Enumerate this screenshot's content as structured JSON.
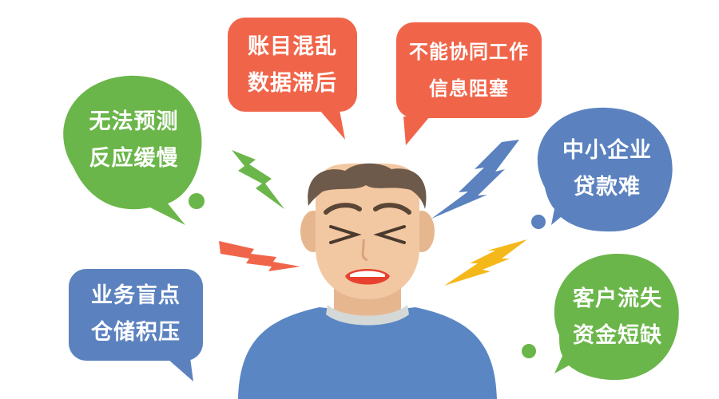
{
  "bubbles": {
    "forecast": {
      "line1": "无法预测",
      "line2": "反应缓慢",
      "color": "#6bb64a"
    },
    "accounts": {
      "line1": "账目混乱",
      "line2": "数据滞后",
      "color": "#f0654a"
    },
    "teamwork": {
      "line1": "不能协同工作",
      "line2": "信息阻塞",
      "color": "#f0654a"
    },
    "loans": {
      "line1": "中小企业",
      "line2": "贷款难",
      "color": "#5b82bf"
    },
    "inventory": {
      "line1": "业务盲点",
      "line2": "仓储积压",
      "color": "#5b82bf"
    },
    "customers": {
      "line1": "客户流失",
      "line2": "资金短缺",
      "color": "#6bb64a"
    }
  },
  "colors": {
    "skin": "#f2c8a2",
    "hair": "#6d5a4a",
    "shirt": "#5a86c4",
    "mouth": "#e8412f",
    "bolt_green": "#6bb64a",
    "bolt_blue": "#5b82bf",
    "bolt_red": "#f0654a",
    "bolt_yellow": "#f5b81a"
  }
}
